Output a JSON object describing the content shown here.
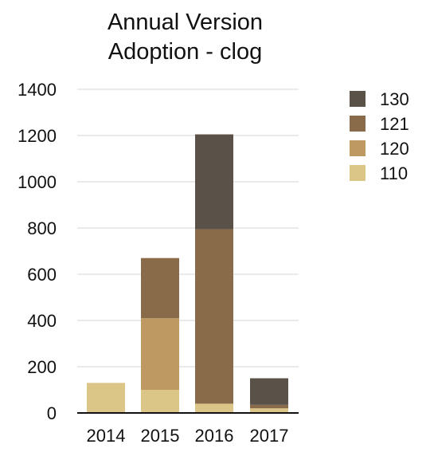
{
  "chart_data": {
    "type": "bar",
    "stacked": true,
    "title_lines": [
      "Annual Version",
      "Adoption - clog"
    ],
    "categories": [
      "2014",
      "2015",
      "2016",
      "2017"
    ],
    "series": [
      {
        "name": "110",
        "color": "#dcc687",
        "values": [
          130,
          100,
          40,
          20
        ]
      },
      {
        "name": "120",
        "color": "#be9a62",
        "values": [
          0,
          310,
          0,
          0
        ]
      },
      {
        "name": "121",
        "color": "#8a6b49",
        "values": [
          0,
          260,
          755,
          15
        ]
      },
      {
        "name": "130",
        "color": "#5a5249",
        "values": [
          0,
          0,
          410,
          115
        ]
      }
    ],
    "legend_order": [
      "130",
      "121",
      "120",
      "110"
    ],
    "ylim": [
      0,
      1400
    ],
    "yticks": [
      0,
      200,
      400,
      600,
      800,
      1000,
      1200,
      1400
    ],
    "grid": true,
    "legend_position": "right"
  }
}
